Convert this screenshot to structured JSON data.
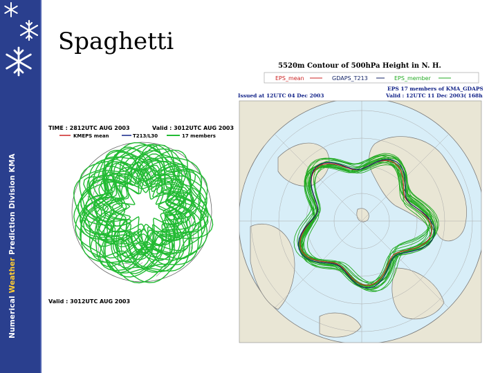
{
  "slide": {
    "title": "Spaghetti",
    "sidebar_text_1": "Numerical ",
    "sidebar_text_highlight": "Weather",
    "sidebar_text_2": " Prediction Division  KMA"
  },
  "left_map": {
    "time_line": "TIME : 2812UTC AUG 2003",
    "valid_line": "Valid : 3012UTC AUG 2003",
    "legend_1": "KMEPS mean",
    "legend_2": "T213/L30",
    "legend_3": "17 members",
    "bottom_valid": "Valid : 3012UTC AUG 2003",
    "colors": {
      "member": "#22bb33",
      "mean": "#cc2222",
      "control": "#112288"
    }
  },
  "right_map": {
    "header": "5520m Contour of 500hPa Height  in N. H.",
    "legend_1": "EPS_mean",
    "legend_2": "GDAPS_T213",
    "legend_3": "EPS_member",
    "issued": "Issued  at  12UTC 04 Dec 2003",
    "eps_line": "EPS 17 members of  KMA_GDAPS",
    "valid_line": "Valid : 12UTC 11 Dec 2003(   168h)",
    "colors": {
      "ocean": "#d8eef8",
      "land": "#e9e6d5",
      "member": "#22aa22",
      "mean": "#cc2222",
      "control": "#112266"
    }
  }
}
